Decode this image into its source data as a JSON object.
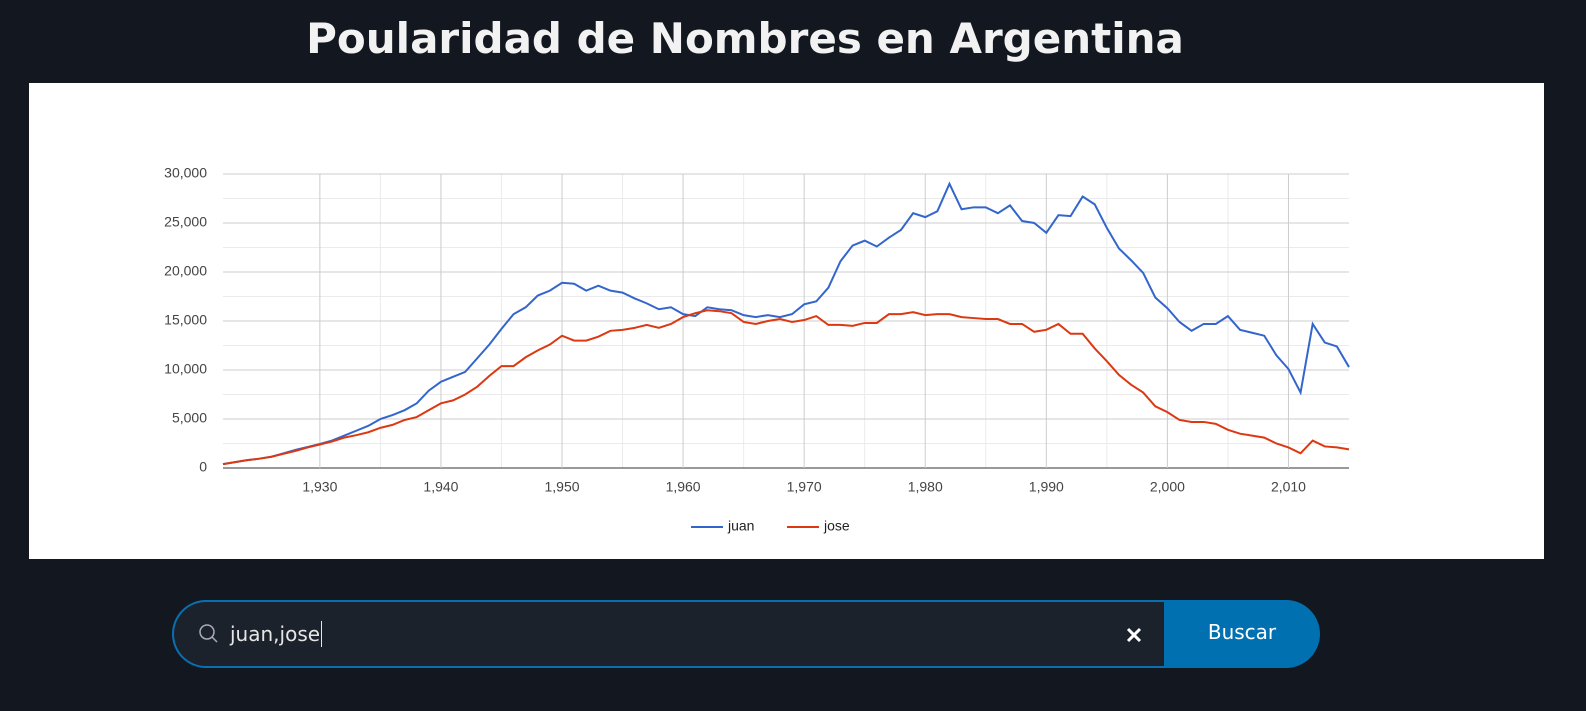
{
  "header": {
    "title": "Poularidad de Nombres en Argentina"
  },
  "chart_data": {
    "type": "line",
    "x": [
      1922,
      1923,
      1924,
      1925,
      1926,
      1927,
      1928,
      1929,
      1930,
      1931,
      1932,
      1933,
      1934,
      1935,
      1936,
      1937,
      1938,
      1939,
      1940,
      1941,
      1942,
      1943,
      1944,
      1945,
      1946,
      1947,
      1948,
      1949,
      1950,
      1951,
      1952,
      1953,
      1954,
      1955,
      1956,
      1957,
      1958,
      1959,
      1960,
      1961,
      1962,
      1963,
      1964,
      1965,
      1966,
      1967,
      1968,
      1969,
      1970,
      1971,
      1972,
      1973,
      1974,
      1975,
      1976,
      1977,
      1978,
      1979,
      1980,
      1981,
      1982,
      1983,
      1984,
      1985,
      1986,
      1987,
      1988,
      1989,
      1990,
      1991,
      1992,
      1993,
      1994,
      1995,
      1996,
      1997,
      1998,
      1999,
      2000,
      2001,
      2002,
      2003,
      2004,
      2005,
      2006,
      2007,
      2008,
      2009,
      2010,
      2011,
      2012,
      2013,
      2014,
      2015
    ],
    "series": [
      {
        "name": "juan",
        "color": "#3366cc",
        "values": [
          400,
          600,
          800,
          950,
          1150,
          1500,
          1850,
          2150,
          2450,
          2800,
          3300,
          3800,
          4300,
          5000,
          5400,
          5900,
          6600,
          7900,
          8800,
          9300,
          9800,
          11200,
          12600,
          14200,
          15700,
          16400,
          17600,
          18100,
          18900,
          18800,
          18100,
          18600,
          18100,
          17900,
          17300,
          16800,
          16200,
          16400,
          15700,
          15500,
          16400,
          16200,
          16100,
          15600,
          15400,
          15600,
          15400,
          15700,
          16700,
          17000,
          18400,
          21100,
          22700,
          23200,
          22600,
          23500,
          24300,
          26000,
          25600,
          26200,
          29000,
          26400,
          26600,
          26600,
          26000,
          26800,
          25200,
          25000,
          24000,
          25800,
          25700,
          27700,
          26900,
          24500,
          22400,
          21200,
          19900,
          17400,
          16300,
          14900,
          14000,
          14700,
          14700,
          15500,
          14100,
          13800,
          13500,
          11500,
          10100,
          7700,
          14700,
          12800,
          12400,
          10300
        ]
      },
      {
        "name": "jose",
        "color": "#dc3912",
        "values": [
          400,
          600,
          800,
          950,
          1150,
          1450,
          1750,
          2100,
          2400,
          2700,
          3100,
          3350,
          3650,
          4100,
          4400,
          4900,
          5200,
          5900,
          6600,
          6900,
          7500,
          8300,
          9400,
          10400,
          10400,
          11300,
          12000,
          12600,
          13500,
          13000,
          13000,
          13400,
          14000,
          14100,
          14300,
          14600,
          14300,
          14700,
          15400,
          15800,
          16100,
          16000,
          15800,
          14900,
          14700,
          15000,
          15200,
          14900,
          15100,
          15500,
          14600,
          14600,
          14500,
          14800,
          14800,
          15700,
          15700,
          15900,
          15600,
          15700,
          15700,
          15400,
          15300,
          15200,
          15200,
          14700,
          14700,
          13900,
          14100,
          14700,
          13700,
          13700,
          12200,
          10900,
          9500,
          8500,
          7700,
          6300,
          5700,
          4900,
          4700,
          4700,
          4500,
          3900,
          3500,
          3300,
          3100,
          2500,
          2100,
          1500,
          2800,
          2200,
          2100,
          1900
        ]
      }
    ],
    "xlim": [
      1922,
      2015
    ],
    "xticks": [
      {
        "value": 1930,
        "label": "1,930"
      },
      {
        "value": 1940,
        "label": "1,940"
      },
      {
        "value": 1950,
        "label": "1,950"
      },
      {
        "value": 1960,
        "label": "1,960"
      },
      {
        "value": 1970,
        "label": "1,970"
      },
      {
        "value": 1980,
        "label": "1,980"
      },
      {
        "value": 1990,
        "label": "1,990"
      },
      {
        "value": 2000,
        "label": "2,000"
      },
      {
        "value": 2010,
        "label": "2,010"
      }
    ],
    "ylim": [
      0,
      30000
    ],
    "yticks": [
      0,
      {
        "value": 5000,
        "label": "5,000"
      },
      {
        "value": 10000,
        "label": "10,000"
      },
      {
        "value": 15000,
        "label": "15,000"
      },
      {
        "value": 20000,
        "label": "20,000"
      },
      {
        "value": 25000,
        "label": "25,000"
      },
      {
        "value": 30000,
        "label": "30,000"
      }
    ],
    "grid": true,
    "legend": "bottom"
  },
  "search": {
    "query": "juan,jose",
    "button": "Buscar"
  }
}
